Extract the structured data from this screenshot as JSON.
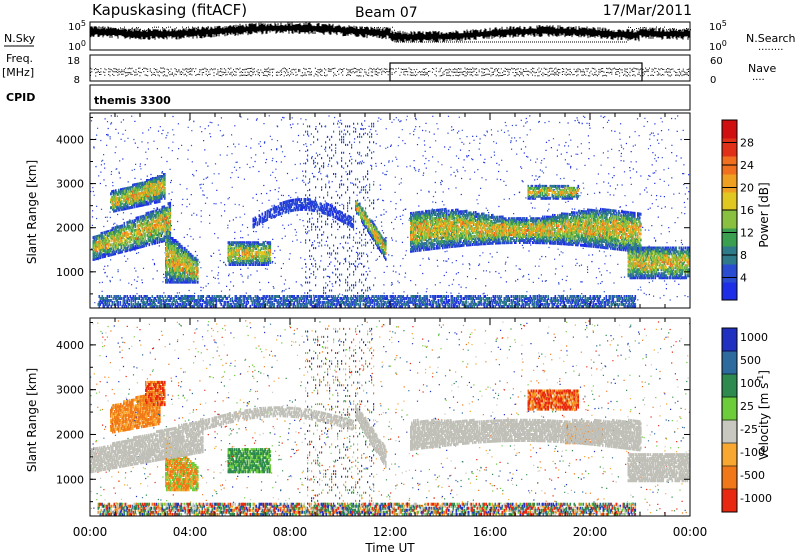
{
  "header": {
    "station": "Kapuskasing (fitACF)",
    "beam": "Beam 07",
    "date": "17/Mar/2011"
  },
  "strip_nsky": {
    "left_label": "N.Sky",
    "right_label": "N.Search",
    "right_label_line": "........",
    "left_ticks": [
      "10^5",
      "10^0"
    ],
    "right_ticks": [
      "10^5",
      "10^0"
    ]
  },
  "strip_freq": {
    "left_label": "Freq.",
    "left_unit": "[MHz]",
    "left_ticks": [
      "18",
      "8"
    ],
    "right_label": "Nave",
    "right_label_line": "....",
    "right_ticks": [
      "60",
      "0"
    ]
  },
  "strip_cpid": {
    "label": "CPID",
    "program": "themis 3300"
  },
  "colors": {
    "power": [
      "#1e2ee6",
      "#2a4cd0",
      "#2f7a8a",
      "#3aa050",
      "#8ac040",
      "#e0c820",
      "#f0a020",
      "#f07020",
      "#e03018",
      "#d01010"
    ],
    "velocity": [
      "#2030c0",
      "#2d6a9e",
      "#2e8a4e",
      "#6ccc3a",
      "#c8c8c0",
      "#f8a830",
      "#f07818",
      "#e82810"
    ],
    "ground_scatter": "#c0c0b8"
  },
  "chart_data": [
    {
      "type": "heatmap",
      "name": "power",
      "ylabel": "Slant Range [km]",
      "yticks": [
        1000,
        2000,
        3000,
        4000
      ],
      "ylim": [
        180,
        4600
      ],
      "xlim": [
        0,
        24
      ],
      "colorbar_label": "Power [dB]",
      "colorbar_ticks": [
        4,
        8,
        12,
        16,
        20,
        24,
        28
      ],
      "colorbar_range": [
        0,
        32
      ]
    },
    {
      "type": "heatmap",
      "name": "velocity",
      "ylabel": "Slant Range [km]",
      "yticks": [
        1000,
        2000,
        3000,
        4000
      ],
      "ylim": [
        180,
        4600
      ],
      "xlim": [
        0,
        24
      ],
      "colorbar_label": "Velocity [m s^-1]",
      "colorbar_ticks": [
        "1000",
        "500",
        "100",
        "25",
        "-25",
        "-100",
        "-500",
        "-1000"
      ],
      "xlabel": "Time UT",
      "xticks": [
        "00:00",
        "04:00",
        "08:00",
        "12:00",
        "16:00",
        "20:00",
        "00:00"
      ]
    }
  ]
}
